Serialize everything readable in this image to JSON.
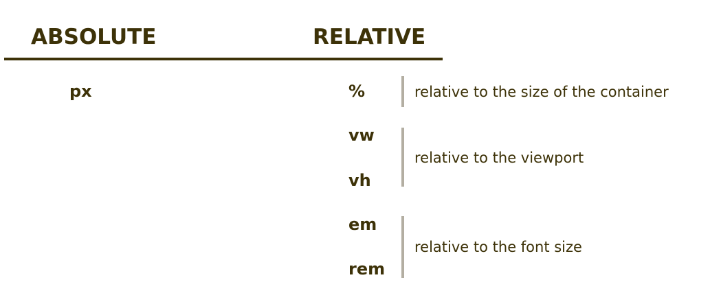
{
  "headings": {
    "absolute": "ABSOLUTE",
    "relative": "RELATIVE"
  },
  "absolute_units": [
    "px"
  ],
  "relative_groups": [
    {
      "units": [
        "%"
      ],
      "description": "relative to the size of the container"
    },
    {
      "units": [
        "vw",
        "vh"
      ],
      "description": "relative to the viewport"
    },
    {
      "units": [
        "em",
        "rem"
      ],
      "description": "relative to the font size"
    }
  ],
  "colors": {
    "text": "#3d3208",
    "rule": "#3d3208",
    "bracket_bar": "#b3aea2",
    "background": "#ffffff"
  }
}
